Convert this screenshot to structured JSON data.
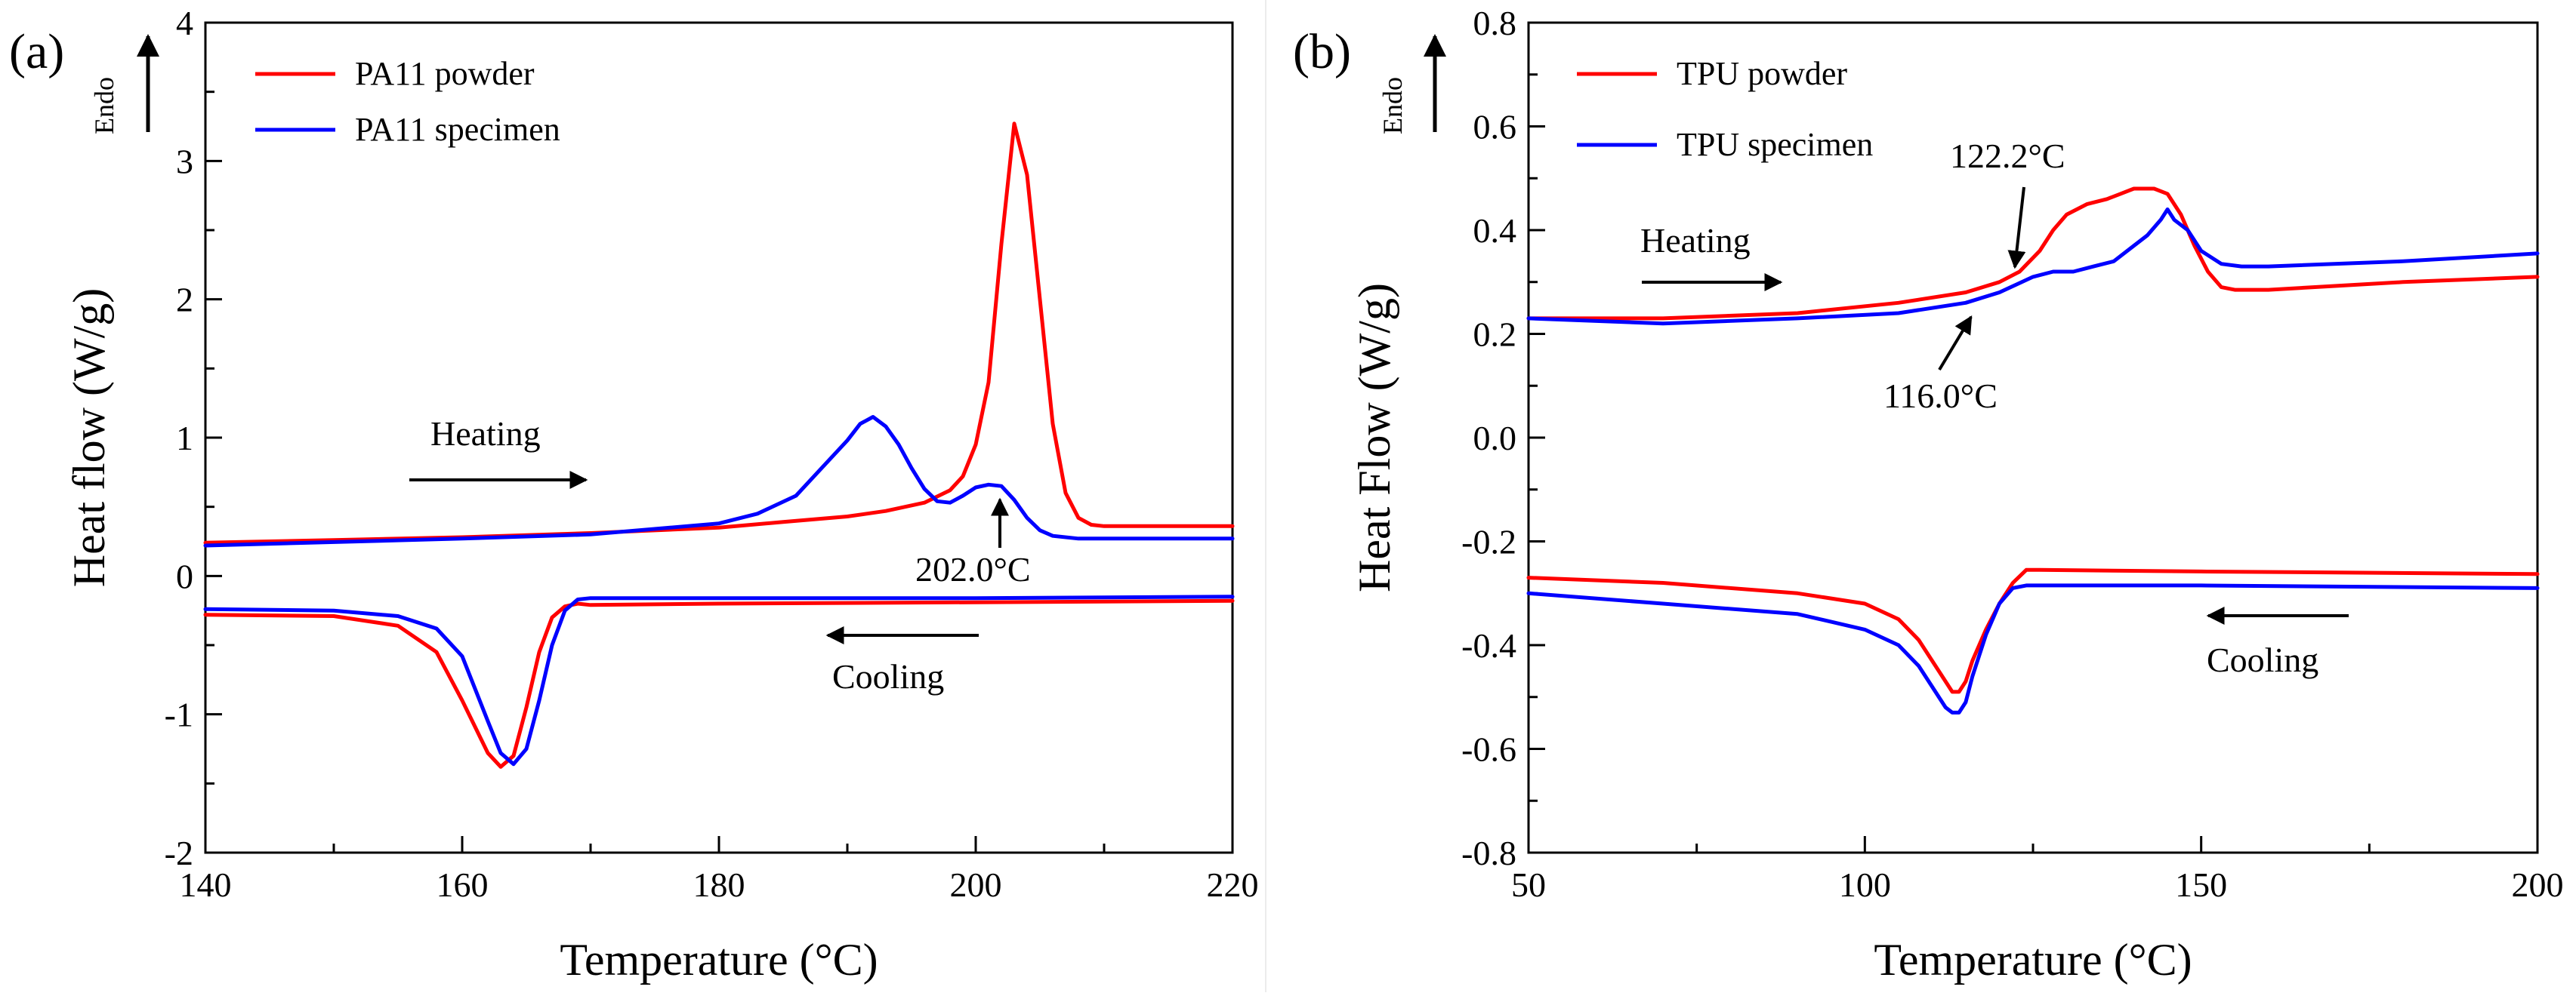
{
  "chart_data": [
    {
      "panel_label": "(a)",
      "type": "line",
      "xlabel": "Temperature (°C)",
      "ylabel": "Heat flow (W/g)",
      "xlim": [
        140,
        220
      ],
      "ylim": [
        -2,
        4
      ],
      "x_ticks": [
        140,
        160,
        180,
        200,
        220
      ],
      "x_tick_labels": [
        "140",
        "160",
        "180",
        "200",
        "220"
      ],
      "y_ticks": [
        -2,
        -1,
        0,
        1,
        2,
        3,
        4
      ],
      "y_tick_labels": [
        "-2",
        "-1",
        "0",
        "1",
        "2",
        "3",
        "4"
      ],
      "endo_label": "Endo",
      "legend": {
        "placement": "top-left",
        "entries": [
          "PA11 powder",
          "PA11 specimen"
        ]
      },
      "series": [
        {
          "name": "PA11 powder",
          "color": "#ff0000",
          "segment": "heating",
          "x": [
            140,
            150,
            160,
            170,
            180,
            185,
            190,
            193,
            196,
            198,
            199,
            200,
            201,
            202,
            203,
            204,
            205,
            206,
            207,
            208,
            209,
            210,
            220
          ],
          "y": [
            0.24,
            0.26,
            0.28,
            0.31,
            0.35,
            0.39,
            0.43,
            0.47,
            0.53,
            0.62,
            0.72,
            0.95,
            1.4,
            2.4,
            3.27,
            2.9,
            2.0,
            1.1,
            0.6,
            0.42,
            0.37,
            0.36,
            0.36
          ]
        },
        {
          "name": "PA11 powder",
          "color": "#ff0000",
          "segment": "cooling",
          "x": [
            140,
            150,
            155,
            158,
            160,
            162,
            163,
            164,
            165,
            166,
            167,
            168,
            169,
            170,
            180,
            200,
            220
          ],
          "y": [
            -0.28,
            -0.29,
            -0.36,
            -0.55,
            -0.9,
            -1.28,
            -1.38,
            -1.3,
            -0.95,
            -0.55,
            -0.3,
            -0.22,
            -0.2,
            -0.21,
            -0.2,
            -0.19,
            -0.18
          ]
        },
        {
          "name": "PA11 specimen",
          "color": "#0000ff",
          "segment": "heating",
          "x": [
            140,
            160,
            170,
            180,
            183,
            186,
            188,
            190,
            191,
            192,
            193,
            194,
            195,
            196,
            197,
            198,
            199,
            200,
            201,
            202,
            203,
            204,
            205,
            206,
            208,
            210,
            220
          ],
          "y": [
            0.22,
            0.27,
            0.3,
            0.38,
            0.45,
            0.58,
            0.78,
            0.98,
            1.1,
            1.15,
            1.08,
            0.95,
            0.78,
            0.63,
            0.54,
            0.53,
            0.58,
            0.64,
            0.66,
            0.65,
            0.55,
            0.42,
            0.33,
            0.29,
            0.27,
            0.27,
            0.27
          ]
        },
        {
          "name": "PA11 specimen",
          "color": "#0000ff",
          "segment": "cooling",
          "x": [
            140,
            150,
            155,
            158,
            160,
            162,
            163,
            164,
            165,
            166,
            167,
            168,
            169,
            170,
            180,
            200,
            220
          ],
          "y": [
            -0.24,
            -0.25,
            -0.29,
            -0.38,
            -0.58,
            -1.05,
            -1.28,
            -1.36,
            -1.25,
            -0.9,
            -0.5,
            -0.25,
            -0.17,
            -0.16,
            -0.16,
            -0.16,
            -0.15
          ]
        }
      ],
      "annotations": [
        {
          "text": "Heating",
          "x": 158,
          "y": 0.98
        },
        {
          "text": "202.0°C",
          "x": 202,
          "y": 0.05
        },
        {
          "text": "Cooling",
          "x": 204,
          "y": -0.75
        }
      ]
    },
    {
      "panel_label": "(b)",
      "type": "line",
      "xlabel": "Temperature (°C)",
      "ylabel": "Heat Flow (W/g)",
      "xlim": [
        50,
        200
      ],
      "ylim": [
        -0.8,
        0.8
      ],
      "x_ticks": [
        50,
        100,
        150,
        200
      ],
      "x_tick_labels": [
        "50",
        "100",
        "150",
        "200"
      ],
      "y_ticks": [
        -0.8,
        -0.6,
        -0.4,
        -0.2,
        0.0,
        0.2,
        0.4,
        0.6,
        0.8
      ],
      "y_tick_labels": [
        "-0.8",
        "-0.6",
        "-0.4",
        "-0.2",
        "0.0",
        "0.2",
        "0.4",
        "0.6",
        "0.8"
      ],
      "endo_label": "Endo",
      "legend": {
        "placement": "top-left",
        "entries": [
          "TPU powder",
          "TPU specimen"
        ]
      },
      "series": [
        {
          "name": "TPU powder",
          "color": "#ff0000",
          "segment": "heating",
          "x": [
            50,
            70,
            90,
            105,
            115,
            120,
            123,
            126,
            128,
            130,
            133,
            136,
            138,
            140,
            143,
            145,
            147,
            149,
            151,
            153,
            155,
            160,
            180,
            200
          ],
          "y": [
            0.23,
            0.23,
            0.24,
            0.26,
            0.28,
            0.3,
            0.32,
            0.36,
            0.4,
            0.43,
            0.45,
            0.46,
            0.47,
            0.48,
            0.48,
            0.47,
            0.43,
            0.37,
            0.32,
            0.29,
            0.285,
            0.285,
            0.3,
            0.31
          ]
        },
        {
          "name": "TPU powder",
          "color": "#ff0000",
          "segment": "cooling",
          "x": [
            50,
            70,
            90,
            100,
            105,
            108,
            110,
            112,
            113,
            114,
            115,
            116,
            118,
            120,
            122,
            124,
            126,
            150,
            200
          ],
          "y": [
            -0.27,
            -0.28,
            -0.3,
            -0.32,
            -0.35,
            -0.39,
            -0.43,
            -0.47,
            -0.49,
            -0.49,
            -0.47,
            -0.43,
            -0.37,
            -0.32,
            -0.28,
            -0.255,
            -0.255,
            -0.258,
            -0.263
          ]
        },
        {
          "name": "TPU specimen",
          "color": "#0000ff",
          "segment": "heating",
          "x": [
            50,
            70,
            90,
            105,
            115,
            120,
            125,
            128,
            131,
            134,
            137,
            140,
            142,
            144,
            145,
            146,
            148,
            150,
            153,
            156,
            160,
            180,
            200
          ],
          "y": [
            0.23,
            0.22,
            0.23,
            0.24,
            0.26,
            0.28,
            0.31,
            0.32,
            0.32,
            0.33,
            0.34,
            0.37,
            0.39,
            0.42,
            0.44,
            0.42,
            0.4,
            0.36,
            0.335,
            0.33,
            0.33,
            0.34,
            0.355
          ]
        },
        {
          "name": "TPU specimen",
          "color": "#0000ff",
          "segment": "cooling",
          "x": [
            50,
            70,
            90,
            100,
            105,
            108,
            110,
            112,
            113,
            114,
            115,
            116,
            118,
            120,
            122,
            124,
            126,
            150,
            200
          ],
          "y": [
            -0.3,
            -0.32,
            -0.34,
            -0.37,
            -0.4,
            -0.44,
            -0.48,
            -0.52,
            -0.53,
            -0.53,
            -0.51,
            -0.46,
            -0.38,
            -0.32,
            -0.29,
            -0.285,
            -0.285,
            -0.285,
            -0.29
          ]
        }
      ],
      "annotations": [
        {
          "text": "Heating",
          "x": 69,
          "y": 0.38
        },
        {
          "text": "122.2°C",
          "x": 135,
          "y": 0.53
        },
        {
          "text": "116.0°C",
          "x": 107,
          "y": 0.07
        },
        {
          "text": "Cooling",
          "x": 171,
          "y": -0.34
        }
      ]
    }
  ]
}
